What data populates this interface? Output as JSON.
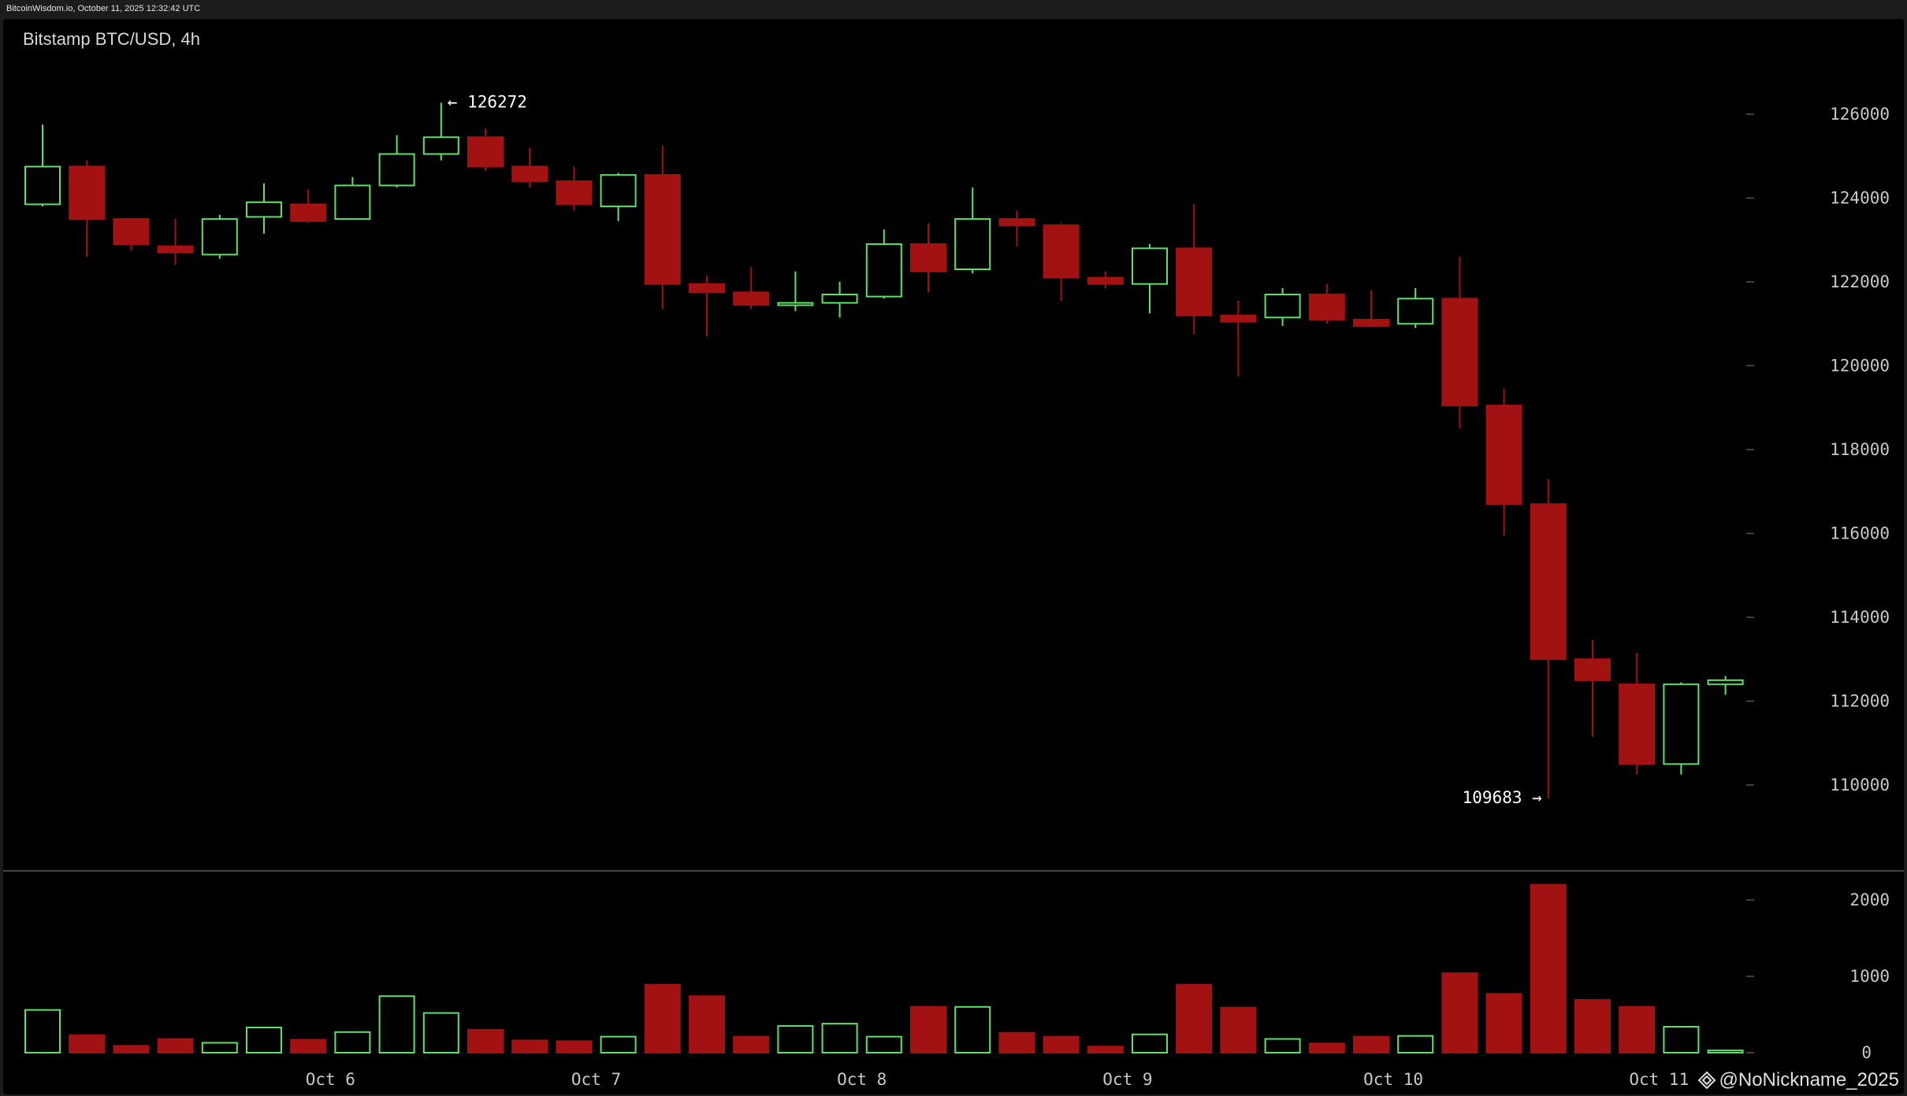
{
  "header": {
    "source_line": "BitcoinWisdom.io, October 11, 2025 12:32:42 UTC",
    "title": "Bitstamp BTC/USD, 4h"
  },
  "watermark": {
    "text": "@NoNickname_2025",
    "icon": "diamond-logo-icon"
  },
  "colors": {
    "up": "#5ee06a",
    "down": "#a31212",
    "background": "#000000",
    "axis_text": "#c8c8c8"
  },
  "chart_data": {
    "type": "candlestick",
    "title": "Bitstamp BTC/USD, 4h",
    "price_ylim": [
      108500,
      126900
    ],
    "price_ticks": [
      126000,
      124000,
      122000,
      120000,
      118000,
      116000,
      114000,
      112000,
      110000
    ],
    "volume_ylim": [
      0,
      2300
    ],
    "volume_ticks": [
      2000,
      1000,
      0
    ],
    "x_labels": [
      {
        "label": "Oct 6",
        "index": 6.0
      },
      {
        "label": "Oct 7",
        "index": 12.0
      },
      {
        "label": "Oct 8",
        "index": 18.0
      },
      {
        "label": "Oct 9",
        "index": 24.0
      },
      {
        "label": "Oct 10",
        "index": 30.0
      },
      {
        "label": "Oct 11",
        "index": 36.0
      }
    ],
    "annotations": [
      {
        "text": "← 126272",
        "price": 126272,
        "candle": 9,
        "side": "right"
      },
      {
        "text": "109683 →",
        "price": 109683,
        "candle": 34,
        "side": "left"
      }
    ],
    "candles": [
      {
        "o": 123850,
        "h": 125750,
        "l": 123800,
        "c": 124750,
        "v": 560
      },
      {
        "o": 124750,
        "h": 124900,
        "l": 122600,
        "c": 123500,
        "v": 230
      },
      {
        "o": 123500,
        "h": 123500,
        "l": 122750,
        "c": 122900,
        "v": 90
      },
      {
        "o": 122850,
        "h": 123500,
        "l": 122400,
        "c": 122700,
        "v": 180
      },
      {
        "o": 122650,
        "h": 123600,
        "l": 122550,
        "c": 123500,
        "v": 130
      },
      {
        "o": 123550,
        "h": 124350,
        "l": 123150,
        "c": 123900,
        "v": 330
      },
      {
        "o": 123850,
        "h": 124200,
        "l": 123400,
        "c": 123450,
        "v": 170
      },
      {
        "o": 123500,
        "h": 124500,
        "l": 123500,
        "c": 124300,
        "v": 270
      },
      {
        "o": 124300,
        "h": 125500,
        "l": 124250,
        "c": 125050,
        "v": 740
      },
      {
        "o": 125050,
        "h": 126272,
        "l": 124900,
        "c": 125450,
        "v": 520
      },
      {
        "o": 125450,
        "h": 125650,
        "l": 124650,
        "c": 124750,
        "v": 300
      },
      {
        "o": 124750,
        "h": 125200,
        "l": 124250,
        "c": 124400,
        "v": 160
      },
      {
        "o": 124400,
        "h": 124750,
        "l": 123700,
        "c": 123850,
        "v": 150
      },
      {
        "o": 123800,
        "h": 124600,
        "l": 123450,
        "c": 124550,
        "v": 210
      },
      {
        "o": 124550,
        "h": 125250,
        "l": 121350,
        "c": 121950,
        "v": 890
      },
      {
        "o": 121950,
        "h": 122150,
        "l": 120700,
        "c": 121750,
        "v": 740
      },
      {
        "o": 121750,
        "h": 122350,
        "l": 121350,
        "c": 121450,
        "v": 210
      },
      {
        "o": 121450,
        "h": 122250,
        "l": 121300,
        "c": 121500,
        "v": 350
      },
      {
        "o": 121500,
        "h": 122000,
        "l": 121150,
        "c": 121700,
        "v": 380
      },
      {
        "o": 121650,
        "h": 123250,
        "l": 121600,
        "c": 122900,
        "v": 210
      },
      {
        "o": 122900,
        "h": 123400,
        "l": 121750,
        "c": 122250,
        "v": 600
      },
      {
        "o": 122300,
        "h": 124250,
        "l": 122200,
        "c": 123500,
        "v": 600
      },
      {
        "o": 123500,
        "h": 123700,
        "l": 122850,
        "c": 123350,
        "v": 260
      },
      {
        "o": 123350,
        "h": 123400,
        "l": 121550,
        "c": 122100,
        "v": 210
      },
      {
        "o": 122100,
        "h": 122250,
        "l": 121850,
        "c": 121950,
        "v": 80
      },
      {
        "o": 121950,
        "h": 122900,
        "l": 121250,
        "c": 122800,
        "v": 240
      },
      {
        "o": 122800,
        "h": 123850,
        "l": 120750,
        "c": 121200,
        "v": 890
      },
      {
        "o": 121200,
        "h": 121550,
        "l": 119750,
        "c": 121050,
        "v": 590
      },
      {
        "o": 121150,
        "h": 121850,
        "l": 120950,
        "c": 121700,
        "v": 180
      },
      {
        "o": 121700,
        "h": 121950,
        "l": 121000,
        "c": 121100,
        "v": 120
      },
      {
        "o": 121100,
        "h": 121800,
        "l": 120950,
        "c": 120950,
        "v": 210
      },
      {
        "o": 121000,
        "h": 121850,
        "l": 120900,
        "c": 121600,
        "v": 220
      },
      {
        "o": 121600,
        "h": 122600,
        "l": 118500,
        "c": 119050,
        "v": 1040
      },
      {
        "o": 119050,
        "h": 119450,
        "l": 115950,
        "c": 116700,
        "v": 770
      },
      {
        "o": 116700,
        "h": 117300,
        "l": 109683,
        "c": 113000,
        "v": 2200
      },
      {
        "o": 113000,
        "h": 113450,
        "l": 111150,
        "c": 112500,
        "v": 690
      },
      {
        "o": 112400,
        "h": 113150,
        "l": 110250,
        "c": 110500,
        "v": 600
      },
      {
        "o": 110500,
        "h": 112450,
        "l": 110250,
        "c": 112400,
        "v": 340
      },
      {
        "o": 112400,
        "h": 112600,
        "l": 112150,
        "c": 112500,
        "v": 30
      }
    ]
  }
}
